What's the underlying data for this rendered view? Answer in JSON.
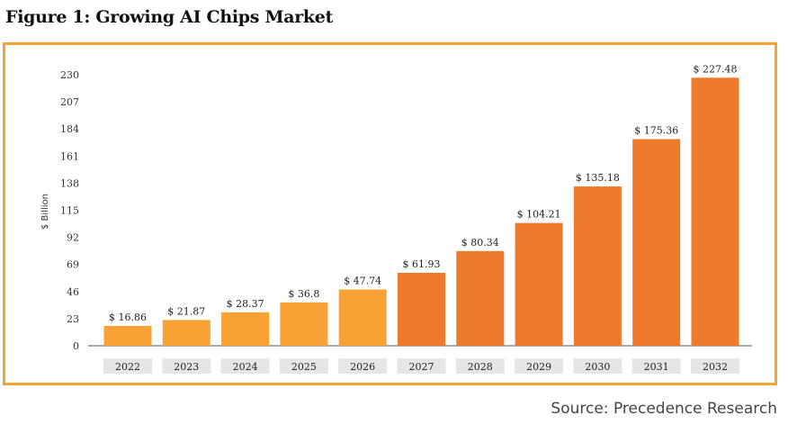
{
  "figure_title": "Figure 1: Growing AI Chips Market",
  "source": "Source: Precedence Research",
  "chart_data": {
    "type": "bar",
    "title": "",
    "xlabel": "",
    "ylabel": "$ Billion",
    "ylim": [
      0,
      230
    ],
    "yticks": [
      0,
      23,
      46,
      69,
      92,
      115,
      138,
      161,
      184,
      207,
      230
    ],
    "grid": false,
    "categories": [
      "2022",
      "2023",
      "2024",
      "2025",
      "2026",
      "2027",
      "2028",
      "2029",
      "2030",
      "2031",
      "2032"
    ],
    "values": [
      16.86,
      21.87,
      28.37,
      36.8,
      47.74,
      61.93,
      80.34,
      104.21,
      135.18,
      175.36,
      227.48
    ],
    "value_labels": [
      "$ 16.86",
      "$ 21.87",
      "$ 28.37",
      "$ 36.8",
      "$ 47.74",
      "$ 61.93",
      "$ 80.34",
      "$ 104.21",
      "$ 135.18",
      "$ 175.36",
      "$ 227.48"
    ],
    "colors": {
      "light_bars": "#f8a135",
      "dark_bars": "#ee7b2b",
      "category_box": "#e6e6e6",
      "frame": "#f4a234",
      "axis": "#555555"
    },
    "light_bar_count": 5
  }
}
